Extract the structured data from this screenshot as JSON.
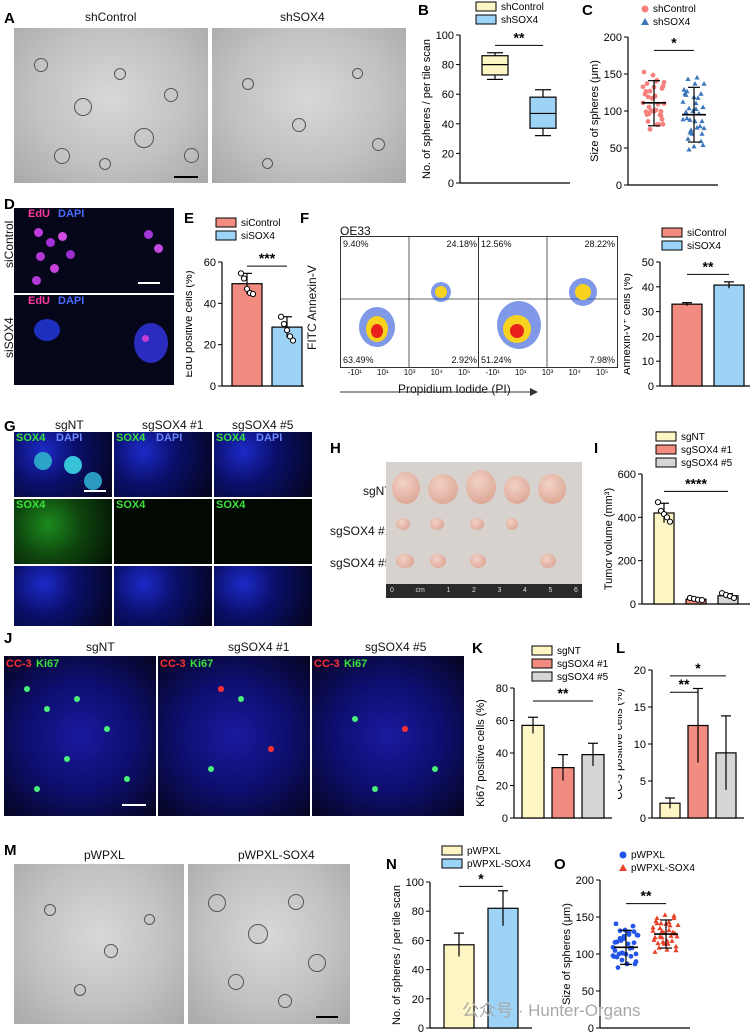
{
  "panel_letters": {
    "A": "A",
    "B": "B",
    "C": "C",
    "D": "D",
    "E": "E",
    "F": "F",
    "G": "G",
    "H": "H",
    "I": "I",
    "J": "J",
    "K": "K",
    "L": "L",
    "M": "M",
    "N": "N",
    "O": "O"
  },
  "A": {
    "left_title": "shControl",
    "right_title": "shSOX4"
  },
  "D": {
    "ch1": "EdU",
    "ch2": "DAPI",
    "row1": "siControl",
    "row2": "siSOX4"
  },
  "F_flow": {
    "cell_line": "OE33",
    "y_axis": "FITC Annexin-V",
    "x_axis": "Propidium Iodide (PI)",
    "left": {
      "ul": "9.40%",
      "ur": "24.18%",
      "ll": "63.49%",
      "lr": "2.92%"
    },
    "right": {
      "ul": "12.56%",
      "ur": "28.22%",
      "ll": "51.24%",
      "lr": "7.98%"
    },
    "ticks": [
      "-10¹",
      "10¹",
      "10³",
      "10⁴",
      "10⁵"
    ]
  },
  "G": {
    "cols": [
      "sgNT",
      "sgSOX4 #1",
      "sgSOX4 #5"
    ],
    "ch_sox": "SOX4",
    "ch_dapi": "DAPI"
  },
  "H": {
    "rows": [
      "sgNT",
      "sgSOX4 #1",
      "sgSOX4 #5"
    ],
    "ruler": [
      "0",
      "cm",
      "1",
      "2",
      "3",
      "4",
      "5",
      "6"
    ]
  },
  "J": {
    "cols": [
      "sgNT",
      "sgSOX4 #1",
      "sgSOX4 #5"
    ],
    "ch1": "CC-3",
    "ch2": "Ki67"
  },
  "M": {
    "left_title": "pWPXL",
    "right_title": "pWPXL-SOX4"
  },
  "watermark": "公众号 · Hunter-Organs",
  "colors": {
    "yellow": "#fdf5c4",
    "blue": "#9dd3f7",
    "red": "#f28b80",
    "gray": "#d6d6d6",
    "salmon": "#f5807d",
    "steel": "#3a76b8"
  },
  "chart_data": [
    {
      "id": "B",
      "type": "box",
      "ylabel": "No. of spheres / per tile scan",
      "ylim": [
        0,
        100
      ],
      "yticks": [
        "0",
        "20",
        "40",
        "60",
        "80",
        "100"
      ],
      "legend": [
        "shControl",
        "shSOX4"
      ],
      "sig": "**",
      "series": [
        {
          "name": "shControl",
          "min": 70,
          "q1": 73,
          "median": 80,
          "q3": 86,
          "max": 88
        },
        {
          "name": "shSOX4",
          "min": 32,
          "q1": 37,
          "median": 47,
          "q3": 58,
          "max": 63
        }
      ]
    },
    {
      "id": "C",
      "type": "scatter",
      "ylabel": "Size of spheres (μm)",
      "ylim": [
        0,
        200
      ],
      "yticks": [
        "0",
        "50",
        "100",
        "150",
        "200"
      ],
      "legend": [
        "shControl",
        "shSOX4"
      ],
      "sig": "*",
      "series": [
        {
          "name": "shControl",
          "mean": 111,
          "sd_low": 80,
          "sd_high": 141
        },
        {
          "name": "shSOX4",
          "mean": 95,
          "sd_low": 58,
          "sd_high": 132
        }
      ]
    },
    {
      "id": "E",
      "type": "bar",
      "ylabel": "EdU positive cells (%)",
      "ylim": [
        0,
        60
      ],
      "yticks": [
        "0",
        "20",
        "40",
        "60"
      ],
      "legend": [
        "siControl",
        "siSOX4"
      ],
      "sig": "***",
      "series": [
        {
          "name": "siControl",
          "value": 49.5,
          "err": 5,
          "points": [
            54.5,
            52,
            47,
            45,
            44.5
          ]
        },
        {
          "name": "siSOX4",
          "value": 28.5,
          "err": 5,
          "points": [
            33.5,
            30,
            27,
            24,
            22
          ]
        }
      ]
    },
    {
      "id": "F",
      "type": "bar",
      "ylabel": "Annexin-V⁺ cells (%)",
      "ylim": [
        0,
        50
      ],
      "yticks": [
        "0",
        "10",
        "20",
        "30",
        "40",
        "50"
      ],
      "legend": [
        "siControl",
        "siSOX4"
      ],
      "sig": "**",
      "series": [
        {
          "name": "siControl",
          "value": 33,
          "err": 0.6
        },
        {
          "name": "siSOX4",
          "value": 40.7,
          "err": 1.3
        }
      ]
    },
    {
      "id": "I",
      "type": "bar",
      "ylabel": "Tumor volume (mm³)",
      "ylim": [
        0,
        600
      ],
      "yticks": [
        "0",
        "200",
        "400",
        "600"
      ],
      "legend": [
        "sgNT",
        "sgSOX4 #1",
        "sgSOX4 #5"
      ],
      "sig": "****",
      "series": [
        {
          "name": "sgNT",
          "value": 420,
          "err": 45,
          "points": [
            470,
            430,
            415,
            400,
            380
          ]
        },
        {
          "name": "sgSOX4 #1",
          "value": 22,
          "err": 6,
          "points": [
            28,
            24,
            20,
            18
          ]
        },
        {
          "name": "sgSOX4 #5",
          "value": 38,
          "err": 10,
          "points": [
            50,
            42,
            36,
            28
          ]
        }
      ]
    },
    {
      "id": "K",
      "type": "bar",
      "ylabel": "Ki67 positive cells (%)",
      "ylim": [
        0,
        80
      ],
      "yticks": [
        "0",
        "20",
        "40",
        "60",
        "80"
      ],
      "legend": [
        "sgNT",
        "sgSOX4 #1",
        "sgSOX4 #5"
      ],
      "sig": "**",
      "series": [
        {
          "name": "sgNT",
          "value": 57,
          "err": 5
        },
        {
          "name": "sgSOX4 #1",
          "value": 31,
          "err": 8
        },
        {
          "name": "sgSOX4 #5",
          "value": 39,
          "err": 7
        }
      ]
    },
    {
      "id": "L",
      "type": "bar",
      "ylabel": "CC-3 positive cells (%)",
      "ylim": [
        0,
        20
      ],
      "yticks": [
        "0",
        "5",
        "10",
        "15",
        "20"
      ],
      "legend": [
        "sgNT",
        "sgSOX4 #1",
        "sgSOX4 #5"
      ],
      "sig": [
        "**",
        "*"
      ],
      "series": [
        {
          "name": "sgNT",
          "value": 2,
          "err": 0.7
        },
        {
          "name": "sgSOX4 #1",
          "value": 12.5,
          "err": 5
        },
        {
          "name": "sgSOX4 #5",
          "value": 8.8,
          "err": 5
        }
      ]
    },
    {
      "id": "N",
      "type": "bar",
      "ylabel": "No. of spheres / per tile scan",
      "ylim": [
        0,
        100
      ],
      "yticks": [
        "0",
        "20",
        "40",
        "60",
        "80",
        "100"
      ],
      "legend": [
        "pWPXL",
        "pWPXL-SOX4"
      ],
      "sig": "*",
      "series": [
        {
          "name": "pWPXL",
          "value": 57,
          "err": 8
        },
        {
          "name": "pWPXL-SOX4",
          "value": 82,
          "err": 12
        }
      ]
    },
    {
      "id": "O",
      "type": "scatter",
      "ylabel": "Size of spheres (μm)",
      "ylim": [
        0,
        200
      ],
      "yticks": [
        "0",
        "50",
        "100",
        "150",
        "200"
      ],
      "legend": [
        "pWPXL",
        "pWPXL-SOX4"
      ],
      "sig": "**",
      "series": [
        {
          "name": "pWPXL",
          "mean": 109,
          "sd_low": 86,
          "sd_high": 132
        },
        {
          "name": "pWPXL-SOX4",
          "mean": 127,
          "sd_low": 108,
          "sd_high": 146
        }
      ]
    }
  ]
}
